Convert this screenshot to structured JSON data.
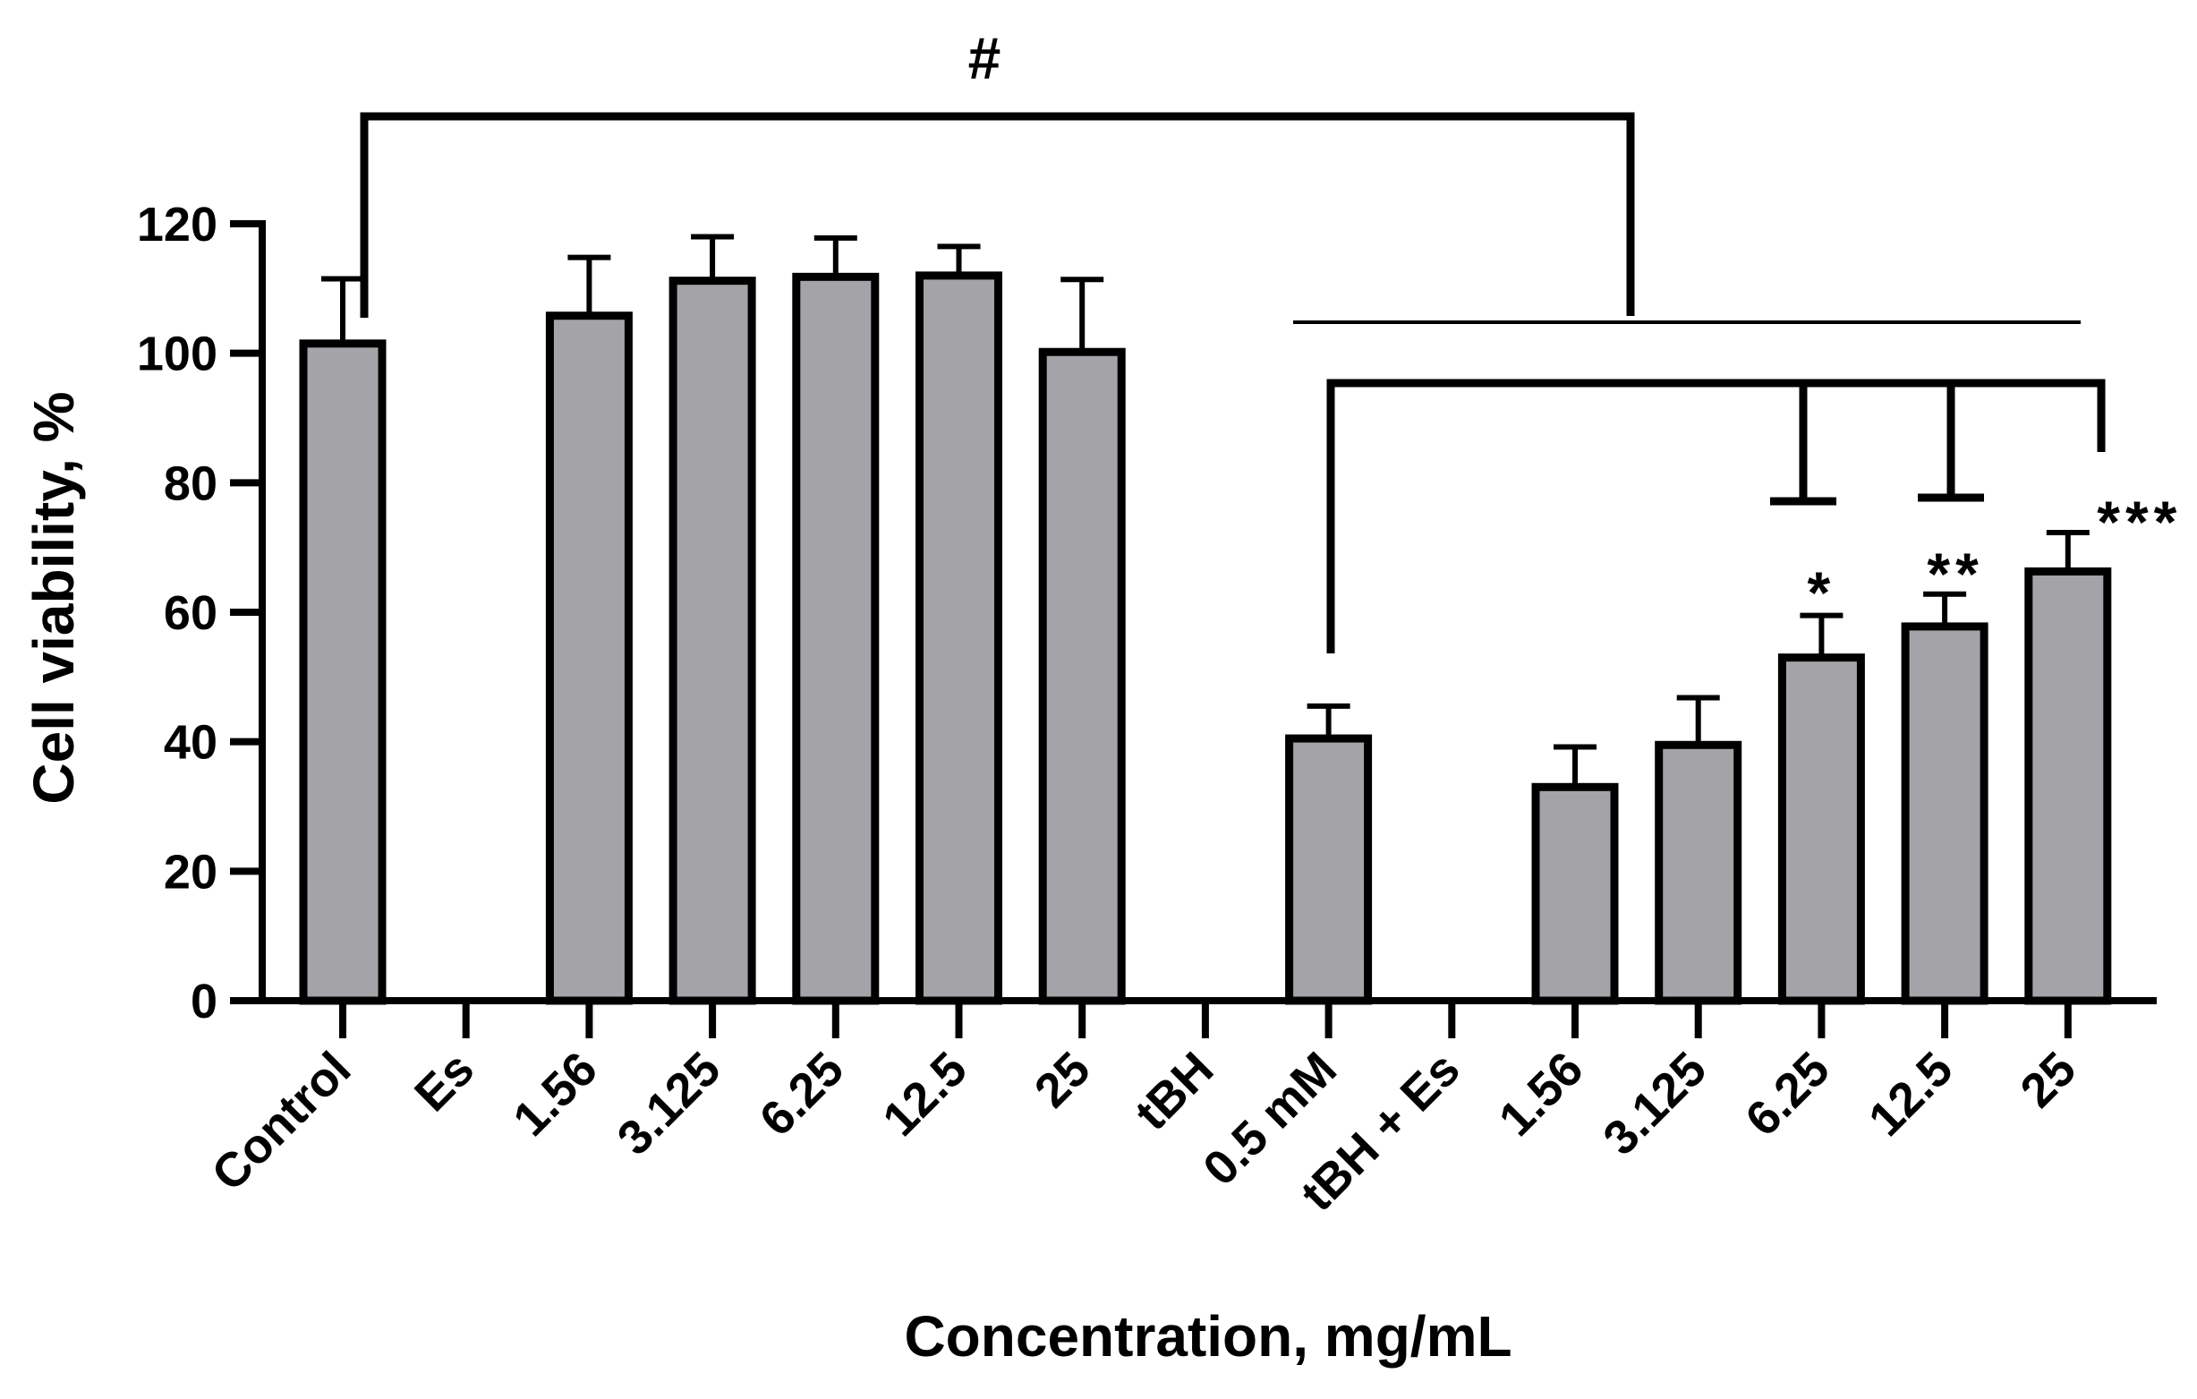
{
  "colors": {
    "bar_fill": "#a3a3a8",
    "stroke": "#000000",
    "background": "#ffffff"
  },
  "chart_data": {
    "type": "bar",
    "title": "",
    "xlabel": "Concentration, mg/mL",
    "ylabel": "Cell viability, %",
    "ylim": [
      0,
      120
    ],
    "yticks": [
      "0",
      "20",
      "40",
      "60",
      "80",
      "100",
      "120"
    ],
    "grid": false,
    "categories": [
      "Control",
      "Es",
      "1.56",
      "3.125",
      "6.25",
      "12.5",
      "25",
      "tBH",
      "0.5 mM",
      "tBH + Es",
      "1.56",
      "3.125",
      "6.25",
      "12.5",
      "25"
    ],
    "values": [
      101.5,
      null,
      105.8,
      111.2,
      111.8,
      112.0,
      100.2,
      null,
      40.5,
      null,
      33.0,
      39.5,
      53.0,
      57.8,
      66.3
    ],
    "errors": [
      10.0,
      null,
      9.0,
      6.8,
      6.0,
      4.5,
      11.2,
      null,
      5.0,
      null,
      6.2,
      7.3,
      6.5,
      5.0,
      6.0
    ],
    "annotations": {
      "hash": "#",
      "star_1": "*",
      "star_2": "**",
      "star_3": "***"
    }
  }
}
